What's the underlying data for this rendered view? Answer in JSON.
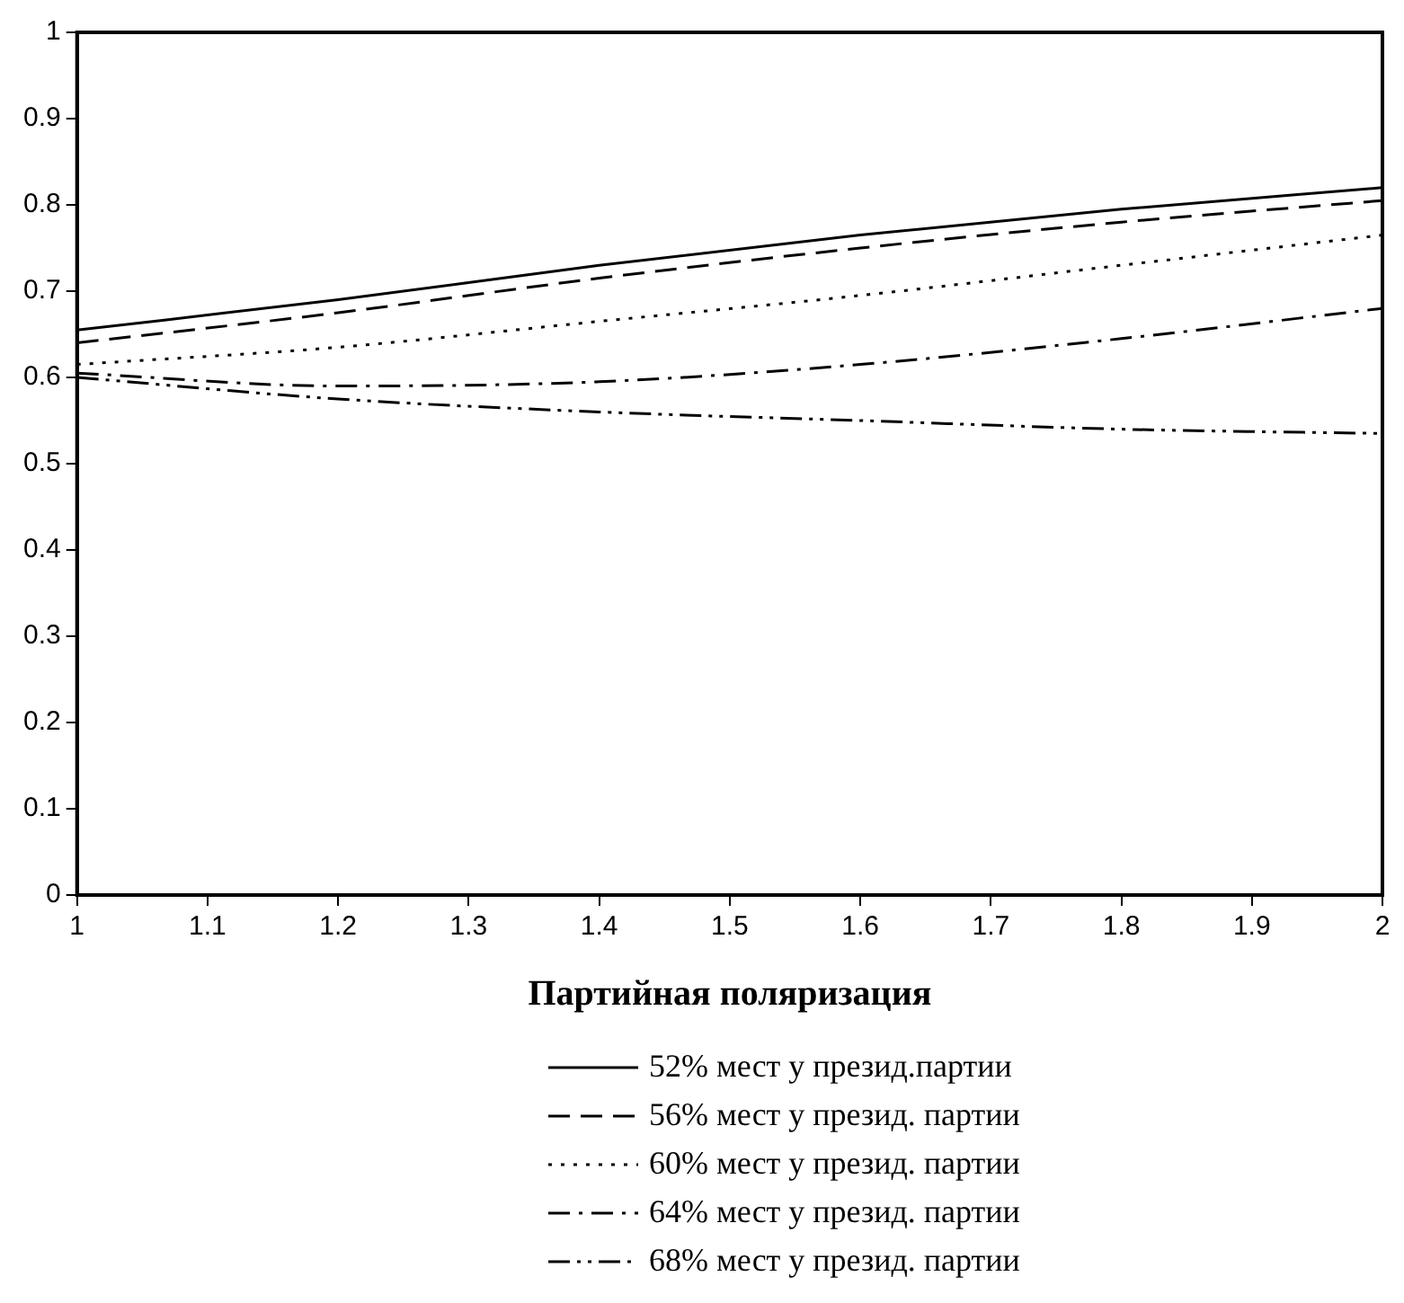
{
  "chart_data": {
    "type": "line",
    "xlabel": "Партийная поляризация",
    "x": [
      1,
      1.2,
      1.4,
      1.6,
      1.8,
      2
    ],
    "series": [
      {
        "name": "52% мест у презид.партии",
        "color": "#000000",
        "line_style": "solid",
        "values": [
          0.655,
          0.69,
          0.73,
          0.765,
          0.795,
          0.82
        ]
      },
      {
        "name": "56% мест у презид. партии",
        "color": "#000000",
        "line_style": "dashed",
        "values": [
          0.64,
          0.675,
          0.715,
          0.75,
          0.78,
          0.805
        ]
      },
      {
        "name": "60% мест у презид. партии",
        "color": "#000000",
        "line_style": "dotted",
        "values": [
          0.615,
          0.635,
          0.665,
          0.695,
          0.73,
          0.765
        ]
      },
      {
        "name": "64% мест у презид. партии",
        "color": "#000000",
        "line_style": "dashdot",
        "values": [
          0.605,
          0.59,
          0.595,
          0.615,
          0.645,
          0.68
        ]
      },
      {
        "name": "68% мест у презид. партии",
        "color": "#000000",
        "line_style": "dashdotdot",
        "values": [
          0.6,
          0.575,
          0.56,
          0.55,
          0.54,
          0.535
        ]
      }
    ],
    "xlim": [
      1,
      2
    ],
    "xticks": [
      1,
      1.1,
      1.2,
      1.3,
      1.4,
      1.5,
      1.6,
      1.7,
      1.8,
      1.9,
      2
    ],
    "ylim": [
      0,
      1
    ],
    "yticks": [
      0,
      0.1,
      0.2,
      0.3,
      0.4,
      0.5,
      0.6,
      0.7,
      0.8,
      0.9,
      1
    ],
    "grid": false,
    "legend": "bottom",
    "marker": "none"
  }
}
